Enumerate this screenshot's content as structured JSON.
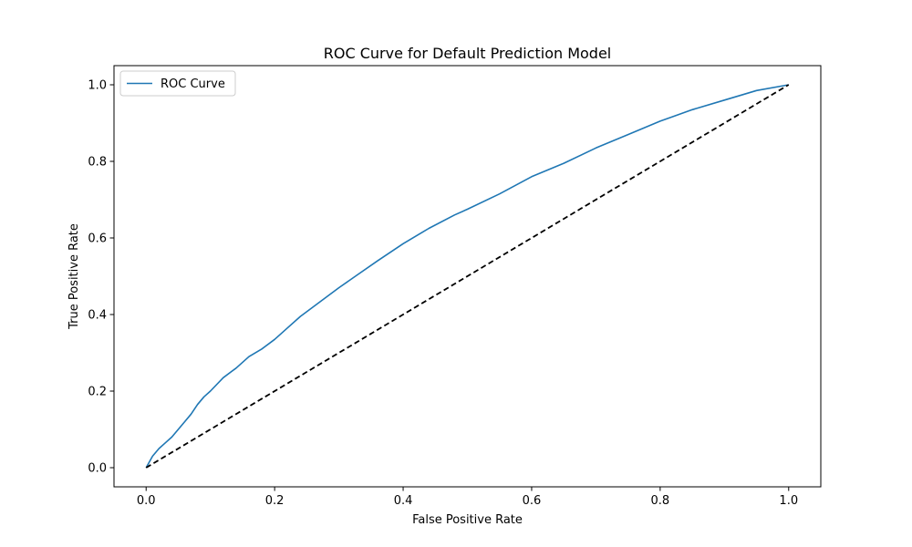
{
  "chart_data": {
    "type": "line",
    "title": "ROC Curve for Default Prediction Model",
    "xlabel": "False Positive Rate",
    "ylabel": "True Positive Rate",
    "xlim": [
      -0.05,
      1.05
    ],
    "ylim": [
      -0.05,
      1.05
    ],
    "xticks": [
      "0.0",
      "0.2",
      "0.4",
      "0.6",
      "0.8",
      "1.0"
    ],
    "yticks": [
      "0.0",
      "0.2",
      "0.4",
      "0.6",
      "0.8",
      "1.0"
    ],
    "grid": false,
    "legend": {
      "location": "upper left",
      "entries": [
        "ROC Curve"
      ]
    },
    "series": [
      {
        "name": "ROC Curve",
        "color": "#1f77b4",
        "style": "solid",
        "x": [
          0.0,
          0.01,
          0.02,
          0.03,
          0.04,
          0.05,
          0.06,
          0.07,
          0.08,
          0.09,
          0.1,
          0.12,
          0.14,
          0.16,
          0.18,
          0.2,
          0.22,
          0.24,
          0.26,
          0.28,
          0.3,
          0.33,
          0.36,
          0.4,
          0.44,
          0.48,
          0.5,
          0.55,
          0.6,
          0.65,
          0.7,
          0.75,
          0.8,
          0.85,
          0.9,
          0.95,
          1.0
        ],
        "y": [
          0.0,
          0.03,
          0.05,
          0.065,
          0.08,
          0.1,
          0.12,
          0.14,
          0.165,
          0.185,
          0.2,
          0.235,
          0.26,
          0.29,
          0.31,
          0.335,
          0.365,
          0.395,
          0.42,
          0.445,
          0.47,
          0.505,
          0.54,
          0.585,
          0.625,
          0.66,
          0.675,
          0.715,
          0.76,
          0.795,
          0.835,
          0.87,
          0.905,
          0.935,
          0.96,
          0.985,
          1.0
        ]
      },
      {
        "name": "",
        "color": "#000000",
        "style": "dashed",
        "x": [
          0.0,
          1.0
        ],
        "y": [
          0.0,
          1.0
        ]
      }
    ]
  }
}
